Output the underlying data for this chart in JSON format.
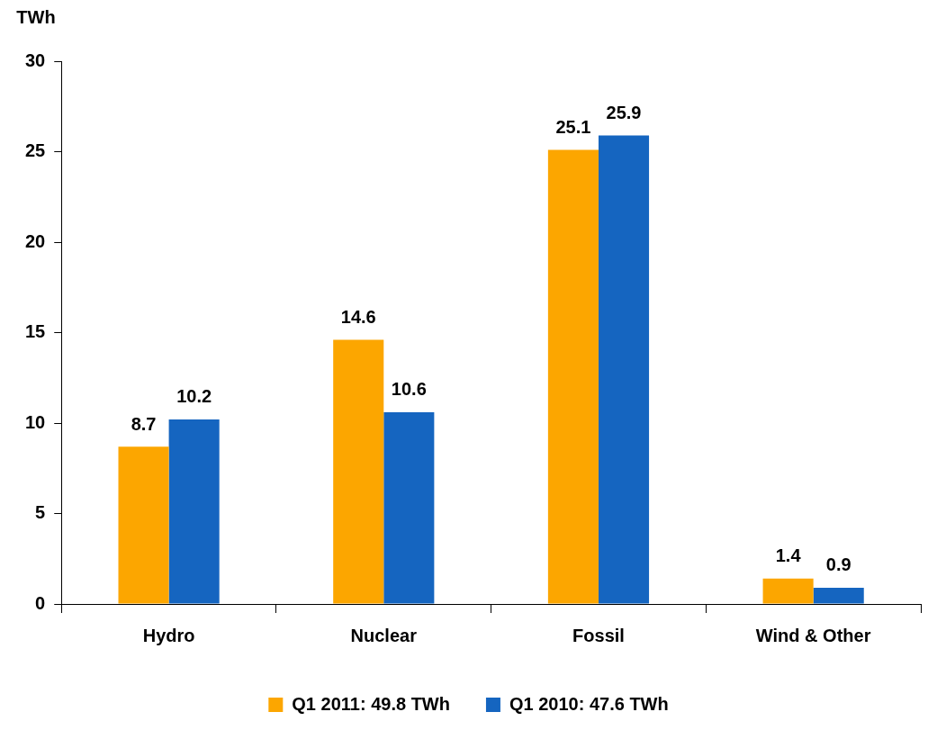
{
  "chart_data": {
    "type": "bar",
    "ylabel": "TWh",
    "categories": [
      "Hydro",
      "Nuclear",
      "Fossil",
      "Wind & Other"
    ],
    "series": [
      {
        "name": "Q1 2011: 49.8 TWh",
        "color": "#fca600",
        "values": [
          8.7,
          14.6,
          25.1,
          1.4
        ]
      },
      {
        "name": "Q1 2010: 47.6 TWh",
        "color": "#1565c0",
        "values": [
          10.2,
          10.6,
          25.9,
          0.9
        ]
      }
    ],
    "ylim": [
      0,
      30
    ],
    "yticks": [
      0,
      5,
      10,
      15,
      20,
      25,
      30
    ],
    "grid": false,
    "legend": "bottom",
    "data_labels": true
  }
}
